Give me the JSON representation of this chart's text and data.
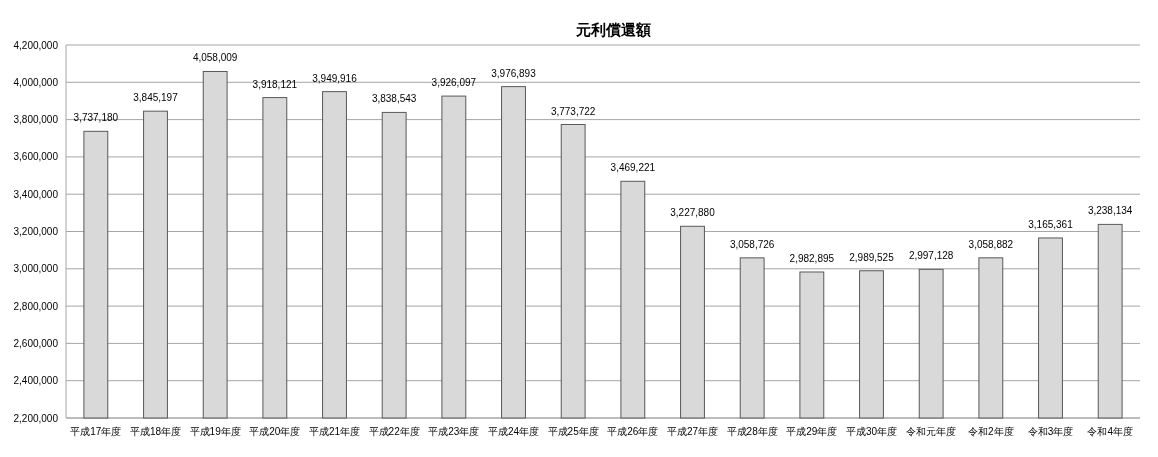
{
  "chart_data": {
    "type": "bar",
    "title": "元利償還額",
    "categories": [
      "平成17年度",
      "平成18年度",
      "平成19年度",
      "平成20年度",
      "平成21年度",
      "平成22年度",
      "平成23年度",
      "平成24年度",
      "平成25年度",
      "平成26年度",
      "平成27年度",
      "平成28年度",
      "平成29年度",
      "平成30年度",
      "令和元年度",
      "令和2年度",
      "令和3年度",
      "令和4年度"
    ],
    "values": [
      3737180,
      3845197,
      4058009,
      3918121,
      3949916,
      3838543,
      3926097,
      3976893,
      3773722,
      3469221,
      3227880,
      3058726,
      2982895,
      2989525,
      2997128,
      3058882,
      3165361,
      3238134
    ],
    "value_labels": [
      "3,737,180",
      "3,845,197",
      "4,058,009",
      "3,918,121",
      "3,949,916",
      "3,838,543",
      "3,926,097",
      "3,976,893",
      "3,773,722",
      "3,469,221",
      "3,227,880",
      "3,058,726",
      "2,982,895",
      "2,989,525",
      "2,997,128",
      "3,058,882",
      "3,165,361",
      "3,238,134"
    ],
    "color": "#d9d9d9",
    "ylim": [
      2200000,
      4200000
    ],
    "yticks": [
      {
        "value": 2200000,
        "label": "2,200,000"
      },
      {
        "value": 2400000,
        "label": "2,400,000"
      },
      {
        "value": 2600000,
        "label": "2,600,000"
      },
      {
        "value": 2800000,
        "label": "2,800,000"
      },
      {
        "value": 3000000,
        "label": "3,000,000"
      },
      {
        "value": 3200000,
        "label": "3,200,000"
      },
      {
        "value": 3400000,
        "label": "3,400,000"
      },
      {
        "value": 3600000,
        "label": "3,600,000"
      },
      {
        "value": 3800000,
        "label": "3,800,000"
      },
      {
        "value": 4000000,
        "label": "4,000,000"
      },
      {
        "value": 4200000,
        "label": "4,200,000"
      }
    ],
    "grid": "y"
  }
}
